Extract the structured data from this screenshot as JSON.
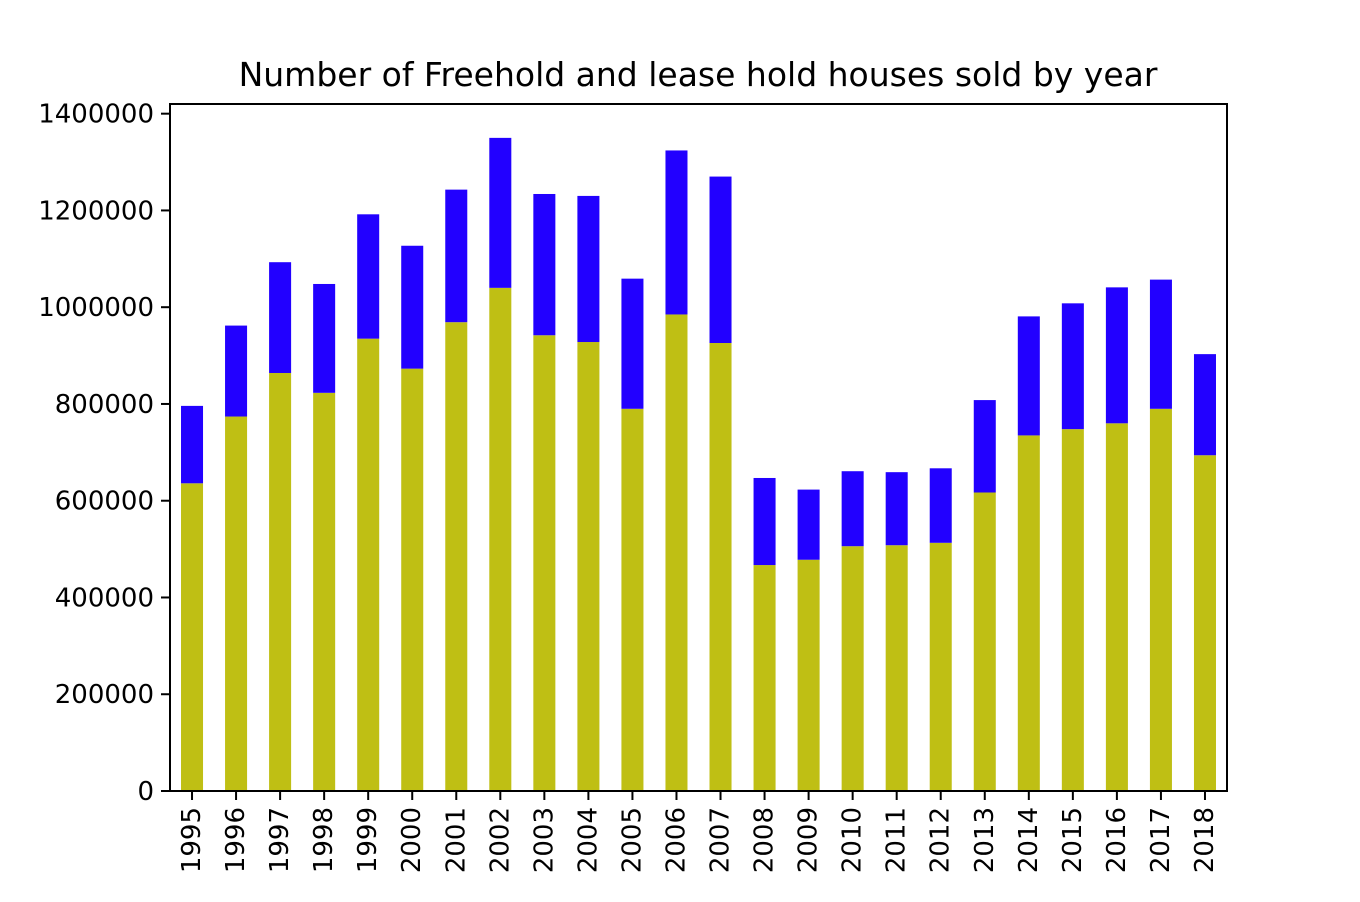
{
  "chart_data": {
    "type": "bar",
    "stacked": true,
    "title": "Number of Freehold and lease hold houses sold by year",
    "xlabel": "",
    "ylabel": "",
    "ylim": [
      0,
      1420000
    ],
    "yticks": [
      "0",
      "200000",
      "400000",
      "600000",
      "800000",
      "1000000",
      "1200000",
      "1400000"
    ],
    "ytick_values": [
      0,
      200000,
      400000,
      600000,
      800000,
      1000000,
      1200000,
      1400000
    ],
    "grid": false,
    "legend": "none",
    "categories": [
      "1995",
      "1996",
      "1997",
      "1998",
      "1999",
      "2000",
      "2001",
      "2002",
      "2003",
      "2004",
      "2005",
      "2006",
      "2007",
      "2008",
      "2009",
      "2010",
      "2011",
      "2012",
      "2013",
      "2014",
      "2015",
      "2016",
      "2017",
      "2018"
    ],
    "series": [
      {
        "color": "#bfbf14",
        "values": [
          636000,
          774000,
          864000,
          823000,
          935000,
          873000,
          969000,
          1040000,
          942000,
          928000,
          790000,
          985000,
          926000,
          467000,
          478000,
          506000,
          508000,
          513000,
          617000,
          735000,
          748000,
          760000,
          790000,
          694000
        ]
      },
      {
        "color": "#2200ff",
        "values": [
          160000,
          188000,
          229000,
          225000,
          257000,
          254000,
          274000,
          310000,
          292000,
          302000,
          269000,
          339000,
          344000,
          180000,
          145000,
          155000,
          151000,
          154000,
          191000,
          246000,
          260000,
          281000,
          267000,
          209000
        ]
      }
    ]
  }
}
